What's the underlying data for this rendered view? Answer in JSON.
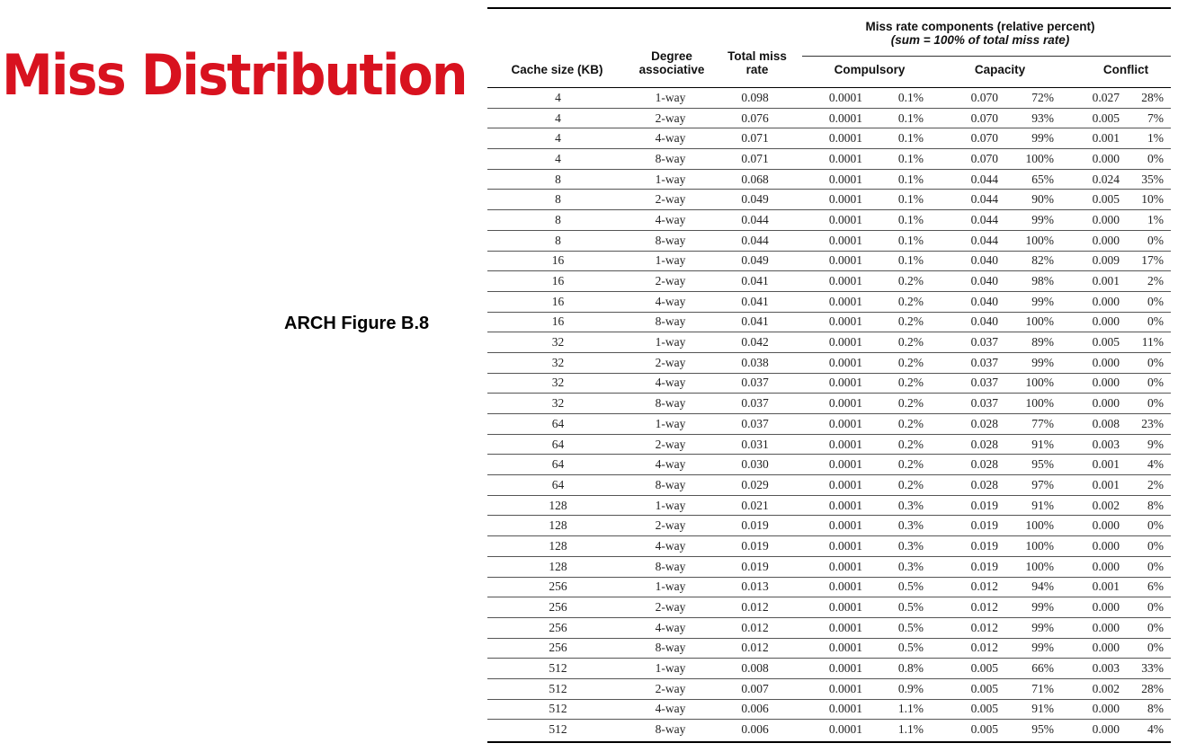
{
  "slide": {
    "title": "Miss Distribution",
    "caption": "ARCH Figure B.8"
  },
  "table": {
    "group_header": "Miss rate components (relative percent)",
    "group_subheader": "(sum = 100% of total miss rate)",
    "headers": {
      "cache_size": "Cache size (KB)",
      "degree_1": "Degree",
      "degree_2": "associative",
      "total_1": "Total miss",
      "total_2": "rate",
      "compulsory": "Compulsory",
      "capacity": "Capacity",
      "conflict": "Conflict"
    },
    "rows": [
      [
        "4",
        "1-way",
        "0.098",
        "0.0001",
        "0.1%",
        "0.070",
        "72%",
        "0.027",
        "28%"
      ],
      [
        "4",
        "2-way",
        "0.076",
        "0.0001",
        "0.1%",
        "0.070",
        "93%",
        "0.005",
        "7%"
      ],
      [
        "4",
        "4-way",
        "0.071",
        "0.0001",
        "0.1%",
        "0.070",
        "99%",
        "0.001",
        "1%"
      ],
      [
        "4",
        "8-way",
        "0.071",
        "0.0001",
        "0.1%",
        "0.070",
        "100%",
        "0.000",
        "0%"
      ],
      [
        "8",
        "1-way",
        "0.068",
        "0.0001",
        "0.1%",
        "0.044",
        "65%",
        "0.024",
        "35%"
      ],
      [
        "8",
        "2-way",
        "0.049",
        "0.0001",
        "0.1%",
        "0.044",
        "90%",
        "0.005",
        "10%"
      ],
      [
        "8",
        "4-way",
        "0.044",
        "0.0001",
        "0.1%",
        "0.044",
        "99%",
        "0.000",
        "1%"
      ],
      [
        "8",
        "8-way",
        "0.044",
        "0.0001",
        "0.1%",
        "0.044",
        "100%",
        "0.000",
        "0%"
      ],
      [
        "16",
        "1-way",
        "0.049",
        "0.0001",
        "0.1%",
        "0.040",
        "82%",
        "0.009",
        "17%"
      ],
      [
        "16",
        "2-way",
        "0.041",
        "0.0001",
        "0.2%",
        "0.040",
        "98%",
        "0.001",
        "2%"
      ],
      [
        "16",
        "4-way",
        "0.041",
        "0.0001",
        "0.2%",
        "0.040",
        "99%",
        "0.000",
        "0%"
      ],
      [
        "16",
        "8-way",
        "0.041",
        "0.0001",
        "0.2%",
        "0.040",
        "100%",
        "0.000",
        "0%"
      ],
      [
        "32",
        "1-way",
        "0.042",
        "0.0001",
        "0.2%",
        "0.037",
        "89%",
        "0.005",
        "11%"
      ],
      [
        "32",
        "2-way",
        "0.038",
        "0.0001",
        "0.2%",
        "0.037",
        "99%",
        "0.000",
        "0%"
      ],
      [
        "32",
        "4-way",
        "0.037",
        "0.0001",
        "0.2%",
        "0.037",
        "100%",
        "0.000",
        "0%"
      ],
      [
        "32",
        "8-way",
        "0.037",
        "0.0001",
        "0.2%",
        "0.037",
        "100%",
        "0.000",
        "0%"
      ],
      [
        "64",
        "1-way",
        "0.037",
        "0.0001",
        "0.2%",
        "0.028",
        "77%",
        "0.008",
        "23%"
      ],
      [
        "64",
        "2-way",
        "0.031",
        "0.0001",
        "0.2%",
        "0.028",
        "91%",
        "0.003",
        "9%"
      ],
      [
        "64",
        "4-way",
        "0.030",
        "0.0001",
        "0.2%",
        "0.028",
        "95%",
        "0.001",
        "4%"
      ],
      [
        "64",
        "8-way",
        "0.029",
        "0.0001",
        "0.2%",
        "0.028",
        "97%",
        "0.001",
        "2%"
      ],
      [
        "128",
        "1-way",
        "0.021",
        "0.0001",
        "0.3%",
        "0.019",
        "91%",
        "0.002",
        "8%"
      ],
      [
        "128",
        "2-way",
        "0.019",
        "0.0001",
        "0.3%",
        "0.019",
        "100%",
        "0.000",
        "0%"
      ],
      [
        "128",
        "4-way",
        "0.019",
        "0.0001",
        "0.3%",
        "0.019",
        "100%",
        "0.000",
        "0%"
      ],
      [
        "128",
        "8-way",
        "0.019",
        "0.0001",
        "0.3%",
        "0.019",
        "100%",
        "0.000",
        "0%"
      ],
      [
        "256",
        "1-way",
        "0.013",
        "0.0001",
        "0.5%",
        "0.012",
        "94%",
        "0.001",
        "6%"
      ],
      [
        "256",
        "2-way",
        "0.012",
        "0.0001",
        "0.5%",
        "0.012",
        "99%",
        "0.000",
        "0%"
      ],
      [
        "256",
        "4-way",
        "0.012",
        "0.0001",
        "0.5%",
        "0.012",
        "99%",
        "0.000",
        "0%"
      ],
      [
        "256",
        "8-way",
        "0.012",
        "0.0001",
        "0.5%",
        "0.012",
        "99%",
        "0.000",
        "0%"
      ],
      [
        "512",
        "1-way",
        "0.008",
        "0.0001",
        "0.8%",
        "0.005",
        "66%",
        "0.003",
        "33%"
      ],
      [
        "512",
        "2-way",
        "0.007",
        "0.0001",
        "0.9%",
        "0.005",
        "71%",
        "0.002",
        "28%"
      ],
      [
        "512",
        "4-way",
        "0.006",
        "0.0001",
        "1.1%",
        "0.005",
        "91%",
        "0.000",
        "8%"
      ],
      [
        "512",
        "8-way",
        "0.006",
        "0.0001",
        "1.1%",
        "0.005",
        "95%",
        "0.000",
        "4%"
      ]
    ]
  }
}
